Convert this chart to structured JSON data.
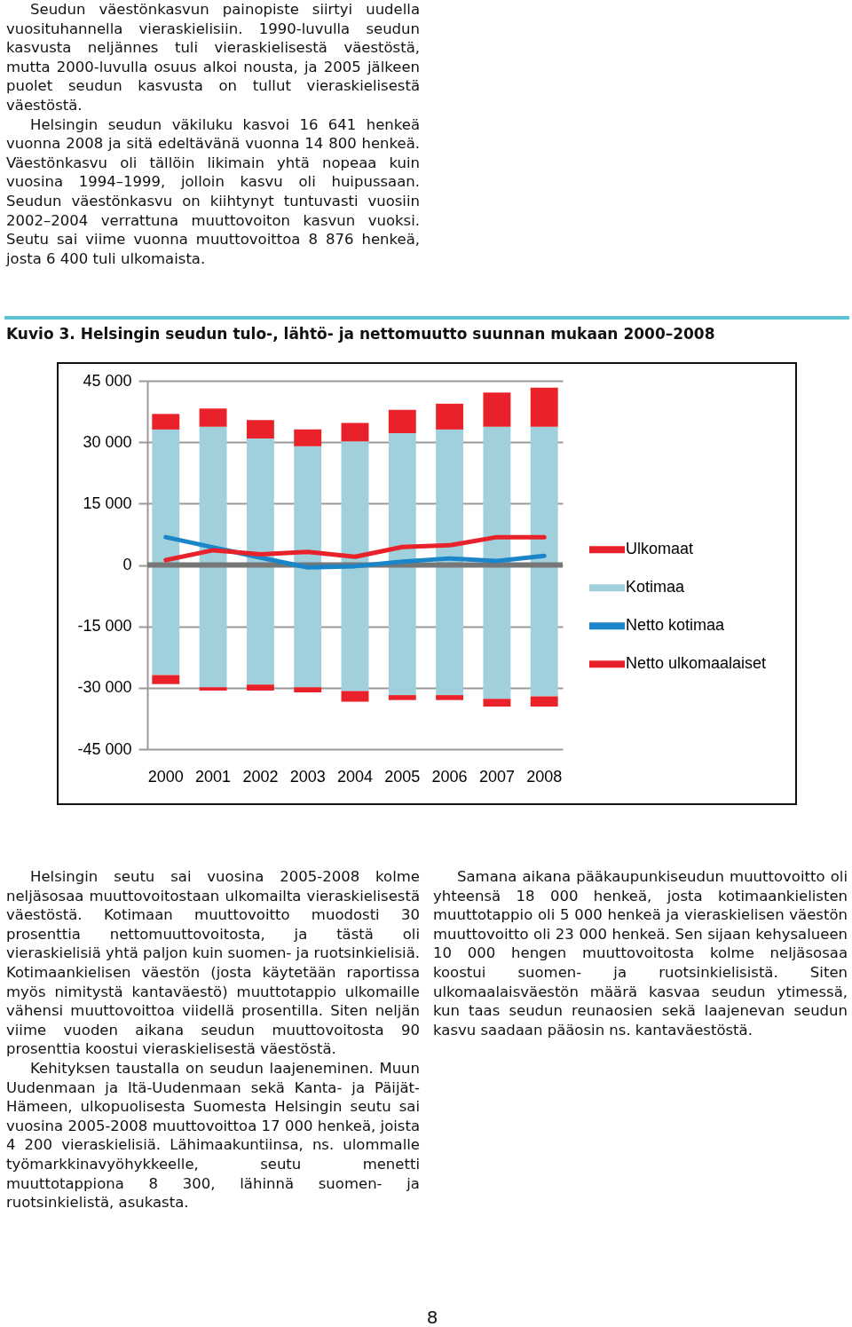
{
  "chart_data": {
    "type": "bar",
    "title": "Kuvio 3. Helsingin seudun tulo-, lähtö- ja nettomuutto suunnan mukaan 2000–2008",
    "categories": [
      "2000",
      "2001",
      "2002",
      "2003",
      "2004",
      "2005",
      "2006",
      "2007",
      "2008"
    ],
    "stacked": true,
    "series": [
      {
        "name": "Kotimaa",
        "color": "#9fd0dc",
        "values": [
          33100,
          33800,
          30900,
          29000,
          30200,
          32200,
          33100,
          33800,
          33800
        ]
      },
      {
        "name": "Ulkomaat",
        "color": "#e8212a",
        "values": [
          3800,
          4400,
          4500,
          4100,
          4500,
          5700,
          6300,
          8300,
          9500
        ]
      },
      {
        "color": "#9fd0dc",
        "values": [
          -26900,
          -29900,
          -29200,
          -29900,
          -30800,
          -31800,
          -31800,
          -32700,
          -32100
        ]
      },
      {
        "color": "#e8212a",
        "values": [
          -2200,
          -800,
          -1500,
          -1200,
          -2600,
          -1200,
          -1200,
          -1900,
          -2500
        ]
      },
      {
        "name": "Netto kotimaa",
        "type": "line",
        "color": "#1a85c9",
        "values": [
          6800,
          4300,
          1800,
          -600,
          -300,
          800,
          1600,
          1000,
          2200
        ]
      },
      {
        "name": "Netto ulkomaalaiset",
        "type": "line",
        "color": "#e8212a",
        "values": [
          1200,
          3600,
          2600,
          3200,
          2000,
          4400,
          4800,
          6800,
          6800
        ]
      }
    ],
    "ylim": [
      -45000,
      45000
    ],
    "yticks": [
      {
        "value": -45000,
        "label": "-45 000"
      },
      {
        "value": -30000,
        "label": "-30 000"
      },
      {
        "value": -15000,
        "label": "-15 000"
      },
      0,
      {
        "value": 15000,
        "label": "15 000"
      },
      {
        "value": 30000,
        "label": "30 000"
      },
      {
        "value": 45000,
        "label": "45 000"
      }
    ],
    "grid": "y",
    "legend": "right",
    "ref_lines": [
      {
        "axis": "y",
        "value": 0,
        "color": "#777777"
      }
    ],
    "annotations": [
      "Seudun väestönkasvun painopiste siirtyi uudella vuosituhannella vieraskielisiin. 1990-luvulla seudun kasvusta neljännes tuli vieraskielisestä väestöstä, mutta 2000-luvulla osuus alkoi nousta, ja 2005 jälkeen puolet seudun kasvusta on tullut vieraskielisestä väestöstä.",
      "Helsingin seudun väkiluku kasvoi 16 641 henkeä vuonna 2008 ja sitä edeltävänä vuonna 14 800 henkeä. Väestönkasvu oli tällöin likimain yhtä nopeaa kuin vuosina 1994–1999, jolloin kasvu oli huipussaan. Seudun väestönkasvu on kiihtynyt tuntuvasti vuosiin 2002–2004 verrattuna muuttovoiton kasvun vuoksi. Seutu sai viime vuonna muuttovoittoa 8 876 henkeä, josta 6 400 tuli ulkomaista.",
      "Helsingin seutu sai vuosina 2005-2008 kolme neljäsosaa muuttovoitostaan ulkomailta vieraskielisestä väestöstä. Kotimaan muuttovoitto muodosti 30 prosenttia nettomuuttovoitosta, ja tästä oli vieraskielisiä yhtä paljon kuin suomen- ja ruotsinkielisiä. Kotimaankielisen väestön (josta käytetään raportissa myös nimitystä kantaväestö) muuttotappio ulkomaille vähensi muuttovoittoa viidellä prosentilla. Siten neljän viime vuoden aikana seudun muuttovoitosta 90 prosenttia koostui vieraskielisestä väestöstä.",
      "Kehityksen taustalla on seudun laajeneminen. Muun Uudenmaan ja Itä-Uudenmaan sekä Kanta- ja Päijät-Hämeen, ulkopuolisesta Suomesta Helsingin seutu sai vuosina 2005-2008 muuttovoittoa 17 000 henkeä, joista 4 200 vieraskielisiä. Lähimaakuntiinsa, ns. ulommalle työmarkkinavyöhykkeelle, seutu menetti muuttotappiona 8 300, lähinnä suomen- ja ruotsinkielistä, asukasta.",
      "Samana aikana pääkaupunkiseudun muuttovoitto oli yhteensä 18 000 henkeä, josta kotimaankielisten muuttotappio oli 5 000 henkeä ja vieraskielisen väestön muuttovoitto oli 23 000 henkeä. Sen sijaan kehysalueen 10 000 hengen muuttovoitosta kolme neljäsosaa koostui suomen- ja ruotsinkielisistä. Siten ulkomaalaisväestön määrä kasvaa seudun ytimessä, kun taas seudun reunaosien sekä laajenevan seudun kasvu saadaan pääosin ns. kantaväestöstä.",
      "8"
    ]
  }
}
